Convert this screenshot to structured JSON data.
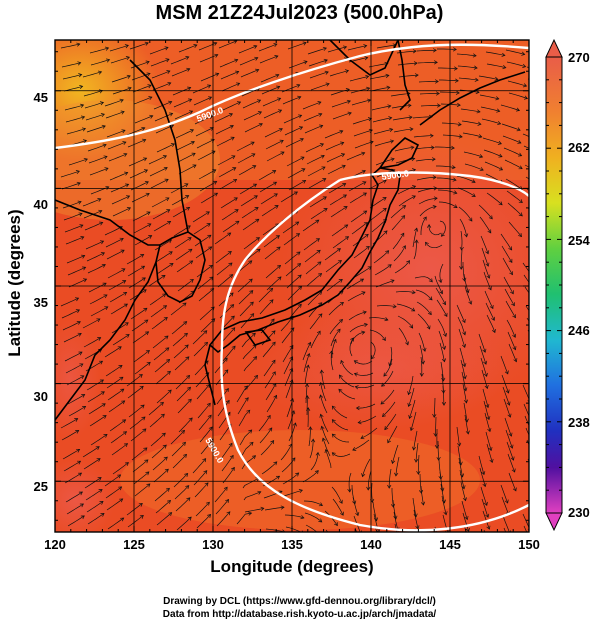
{
  "title": "MSM 21Z24Jul2023 (500.0hPa)",
  "axes": {
    "xlabel": "Longitude (degrees)",
    "ylabel": "Latitude  (degrees)",
    "xticks": [
      "120",
      "125",
      "130",
      "135",
      "140",
      "145",
      "150"
    ],
    "yticks": [
      "45",
      "40",
      "35",
      "30",
      "25"
    ],
    "xlim": [
      120,
      150
    ],
    "ylim": [
      22.4,
      47.6
    ]
  },
  "colorbar": {
    "labels": [
      "270",
      "262",
      "254",
      "246",
      "238",
      "230"
    ],
    "range": [
      230,
      270
    ]
  },
  "contours": [
    {
      "label": "5900.0"
    },
    {
      "label": "5900.0"
    },
    {
      "label": "5900.0"
    }
  ],
  "credits": {
    "line1": "Drawing by DCL (https://www.gfd-dennou.org/library/dcl/)",
    "line2": "Data from http://database.rish.kyoto-u.ac.jp/arch/jmadata/"
  }
}
